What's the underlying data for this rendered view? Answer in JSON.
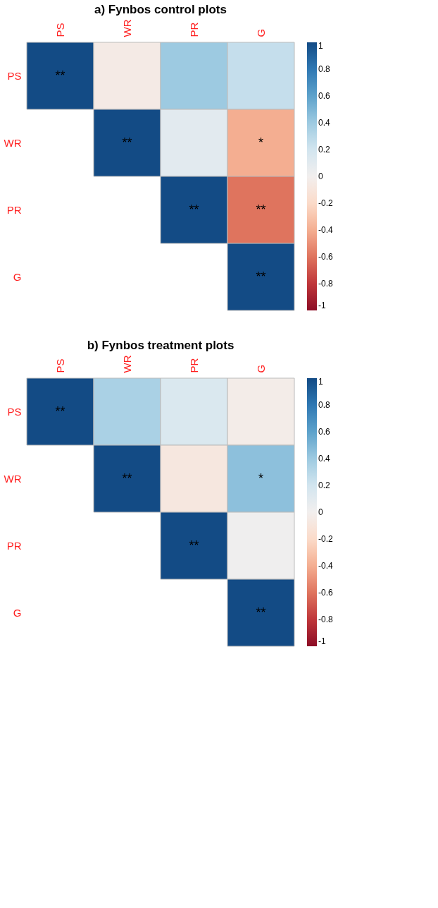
{
  "chart_data": [
    {
      "type": "heatmap",
      "title": "a)    Fynbos control plots",
      "categories": [
        "PS",
        "WR",
        "PR",
        "G"
      ],
      "y_categories": [
        "PS",
        "WR",
        "PR",
        "G"
      ],
      "cells": [
        [
          1,
          -0.05,
          0.4,
          0.25
        ],
        [
          null,
          1,
          0.1,
          -0.4
        ],
        [
          null,
          null,
          1,
          -0.6
        ],
        [
          null,
          null,
          null,
          1
        ]
      ],
      "cell_labels": [
        [
          "**",
          null,
          null,
          null
        ],
        [
          null,
          "**",
          null,
          "*"
        ],
        [
          null,
          null,
          "**",
          "**"
        ],
        [
          null,
          null,
          null,
          "**"
        ]
      ],
      "clim": [
        -1,
        1
      ],
      "cticks": [
        -1,
        -0.8,
        -0.6,
        -0.4,
        -0.2,
        0,
        0.2,
        0.4,
        0.6,
        0.8,
        1
      ]
    },
    {
      "type": "heatmap",
      "title": "b)    Fynbos treatment plots",
      "categories": [
        "PS",
        "WR",
        "PR",
        "G"
      ],
      "y_categories": [
        "PS",
        "WR",
        "PR",
        "G"
      ],
      "cells": [
        [
          1,
          0.35,
          0.15,
          -0.03
        ],
        [
          null,
          1,
          -0.08,
          0.45
        ],
        [
          null,
          null,
          1,
          0.02
        ],
        [
          null,
          null,
          null,
          1
        ]
      ],
      "cell_labels": [
        [
          "**",
          null,
          null,
          null
        ],
        [
          null,
          "**",
          null,
          "*"
        ],
        [
          null,
          null,
          "**",
          null
        ],
        [
          null,
          null,
          null,
          "**"
        ]
      ],
      "clim": [
        -1,
        1
      ],
      "cticks": [
        -1,
        -0.8,
        -0.6,
        -0.4,
        -0.2,
        0,
        0.2,
        0.4,
        0.6,
        0.8,
        1
      ]
    }
  ]
}
